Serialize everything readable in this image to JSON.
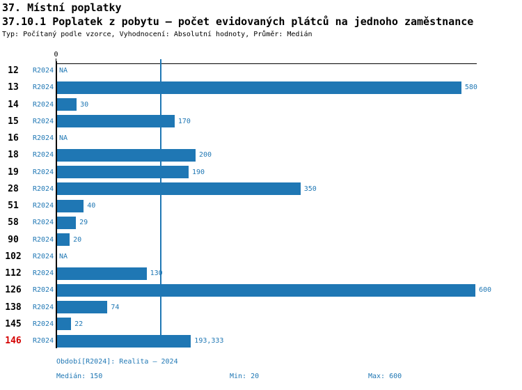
{
  "header": {
    "title": "37. Místní poplatky",
    "subtitle": "37.10.1 Poplatek z pobytu – počet evidovaných plátců na jednoho zaměstnance",
    "meta": "Typ: Počítaný podle vzorce, Vyhodnocení: Absolutní hodnoty, Průměr: Medián"
  },
  "chart_data": {
    "type": "bar",
    "orientation": "horizontal",
    "xlim": [
      0,
      600
    ],
    "axis_zero_label": "0",
    "median_line_value": 150,
    "period_label": "R2024",
    "na_label": "NA",
    "legend_position": "none",
    "grid": false,
    "rows": [
      {
        "id": "12",
        "value": null,
        "value_label": "NA",
        "highlight": false
      },
      {
        "id": "13",
        "value": 580,
        "value_label": "580",
        "highlight": false
      },
      {
        "id": "14",
        "value": 30,
        "value_label": "30",
        "highlight": false
      },
      {
        "id": "15",
        "value": 170,
        "value_label": "170",
        "highlight": false
      },
      {
        "id": "16",
        "value": null,
        "value_label": "NA",
        "highlight": false
      },
      {
        "id": "18",
        "value": 200,
        "value_label": "200",
        "highlight": false
      },
      {
        "id": "19",
        "value": 190,
        "value_label": "190",
        "highlight": false
      },
      {
        "id": "28",
        "value": 350,
        "value_label": "350",
        "highlight": false
      },
      {
        "id": "51",
        "value": 40,
        "value_label": "40",
        "highlight": false
      },
      {
        "id": "58",
        "value": 29,
        "value_label": "29",
        "highlight": false
      },
      {
        "id": "90",
        "value": 20,
        "value_label": "20",
        "highlight": false
      },
      {
        "id": "102",
        "value": null,
        "value_label": "NA",
        "highlight": false
      },
      {
        "id": "112",
        "value": 130,
        "value_label": "130",
        "highlight": false
      },
      {
        "id": "126",
        "value": 600,
        "value_label": "600",
        "highlight": false
      },
      {
        "id": "138",
        "value": 74,
        "value_label": "74",
        "highlight": false
      },
      {
        "id": "145",
        "value": 22,
        "value_label": "22",
        "highlight": false
      },
      {
        "id": "146",
        "value": 193.333,
        "value_label": "193,333",
        "highlight": true
      }
    ],
    "colors": {
      "bar": "#1f77b4",
      "label_blue": "#1f77b4",
      "highlight_red": "#d40000",
      "axis": "#000000"
    }
  },
  "footer": {
    "period": "Období[R2024]: Realita – 2024",
    "median": "Medián: 150",
    "min": "Min: 20",
    "max": "Max: 600"
  }
}
